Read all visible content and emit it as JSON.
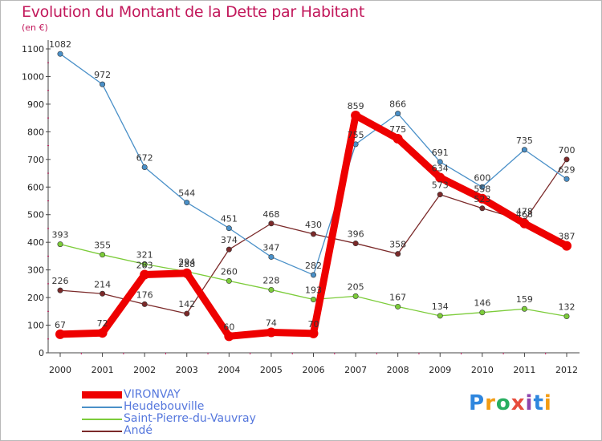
{
  "title": "Evolution du Montant de la Dette par Habitant",
  "unit_label": "(en €)",
  "logo": {
    "text": "Proxiti",
    "letters": [
      {
        "ch": "P",
        "color": "#2e86de"
      },
      {
        "ch": "r",
        "color": "#f39c12"
      },
      {
        "ch": "o",
        "color": "#27ae60"
      },
      {
        "ch": "x",
        "color": "#e74c3c"
      },
      {
        "ch": "i",
        "color": "#8e44ad"
      },
      {
        "ch": "t",
        "color": "#2e86de"
      },
      {
        "ch": "i",
        "color": "#f39c12"
      }
    ]
  },
  "chart_data": {
    "type": "line",
    "title": "Evolution du Montant de la Dette par Habitant",
    "ylabel": "(en €)",
    "xlabel": "",
    "ylim": [
      0,
      1100
    ],
    "yticks": [
      0,
      100,
      200,
      300,
      400,
      500,
      600,
      700,
      800,
      900,
      1000,
      1100
    ],
    "x": [
      "2000",
      "2001",
      "2002",
      "2003",
      "2004",
      "2005",
      "2006",
      "2007",
      "2008",
      "2009",
      "2010",
      "2011",
      "2012"
    ],
    "grid": false,
    "legend_position": "bottom-left",
    "series": [
      {
        "name": "VIRONVAY",
        "color": "#ee0000",
        "values": [
          67,
          72,
          283,
          288,
          60,
          74,
          70,
          859,
          775,
          634,
          558,
          468,
          387
        ]
      },
      {
        "name": "Heudebouville",
        "color": "#4a90c8",
        "values": [
          1082,
          972,
          672,
          544,
          451,
          347,
          282,
          755,
          866,
          691,
          600,
          735,
          629
        ]
      },
      {
        "name": "Saint-Pierre-du-Vauvray",
        "color": "#7ccc3a",
        "values": [
          393,
          355,
          321,
          294,
          260,
          228,
          193,
          205,
          167,
          134,
          146,
          159,
          132
        ]
      },
      {
        "name": "Andé",
        "color": "#7b2a2a",
        "values": [
          226,
          214,
          176,
          142,
          374,
          468,
          430,
          396,
          358,
          573,
          523,
          478,
          700
        ]
      }
    ]
  }
}
